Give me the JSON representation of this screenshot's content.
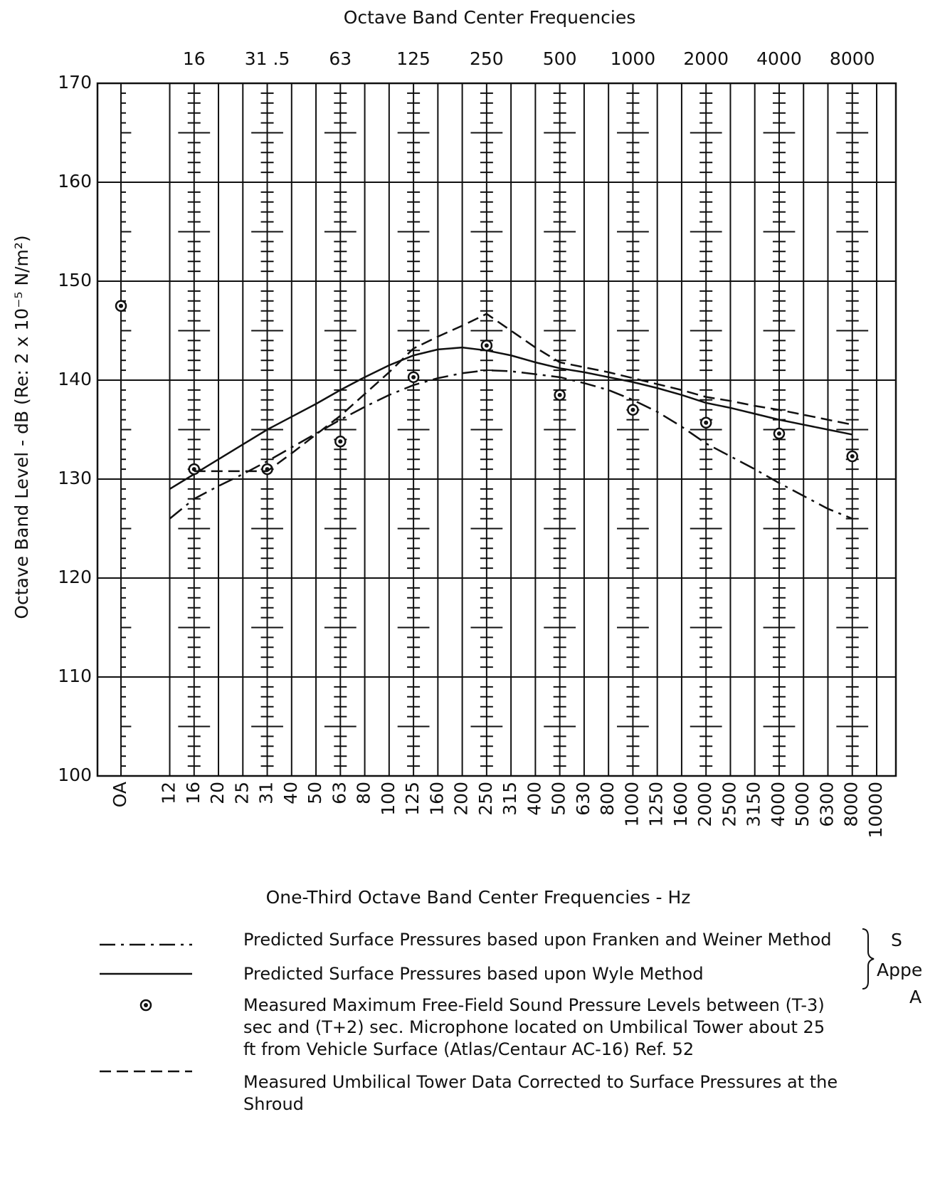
{
  "chart_data": {
    "type": "line",
    "title": "Octave Band Center Frequencies",
    "x_label": "One-Third Octave Band Center Frequencies - Hz",
    "y_label": "Octave Band Level - dB (Re: 2 x 10⁻⁵ N/m²)",
    "categories": [
      "OA",
      null,
      "12",
      "16",
      "20",
      "25",
      "31",
      "40",
      "50",
      "63",
      "80",
      "100",
      "125",
      "160",
      "200",
      "250",
      "315",
      "400",
      "500",
      "630",
      "800",
      "1000",
      "1250",
      "1600",
      "2000",
      "2500",
      "3150",
      "4000",
      "5000",
      "6300",
      "8000",
      "10000"
    ],
    "top_categories": [
      null,
      null,
      null,
      "16",
      null,
      null,
      "31 .5",
      null,
      null,
      "63",
      null,
      null,
      "125",
      null,
      null,
      "250",
      null,
      null,
      "500",
      null,
      null,
      "1000",
      null,
      null,
      "2000",
      null,
      null,
      "4000",
      null,
      null,
      "8000",
      null
    ],
    "ylim": [
      100,
      170
    ],
    "yticks": [
      100,
      110,
      120,
      130,
      140,
      150,
      160,
      170
    ],
    "grid": true,
    "color": "#111111",
    "series": [
      {
        "name": "Predicted Surface Pressures based upon Franken and Weiner Method",
        "style": "dash-dot",
        "values": [
          null,
          null,
          126,
          128,
          129.3,
          130.5,
          131.8,
          133.2,
          134.6,
          136,
          137.3,
          138.5,
          139.5,
          140.2,
          140.7,
          141,
          140.9,
          140.6,
          140.3,
          139.7,
          139,
          138,
          136.8,
          135.3,
          133.6,
          132.3,
          131,
          129.6,
          128.3,
          127,
          126,
          null
        ]
      },
      {
        "name": "Predicted Surface Pressures based upon Wyle Method",
        "style": "solid",
        "values": [
          null,
          null,
          129,
          130.5,
          132,
          133.5,
          135,
          136.3,
          137.6,
          139,
          140.3,
          141.5,
          142.5,
          143.1,
          143.3,
          143,
          142.5,
          141.8,
          141.2,
          140.8,
          140.3,
          139.8,
          139.2,
          138.5,
          137.7,
          137.2,
          136.6,
          136,
          135.5,
          135,
          134.5,
          null
        ]
      },
      {
        "name": "Measured Maximum Free-Field Sound Pressure Levels between (T-3) sec and (T+2) sec. Microphone located on Umbilical Tower about 25 ft from Vehicle Surface (Atlas/Centaur AC-16) Ref. 52",
        "style": "marker",
        "values": [
          147.5,
          null,
          null,
          131,
          null,
          null,
          131,
          null,
          null,
          133.8,
          null,
          null,
          140.3,
          null,
          null,
          143.5,
          null,
          null,
          138.5,
          null,
          null,
          137,
          null,
          null,
          135.7,
          null,
          null,
          134.6,
          null,
          null,
          132.3,
          null
        ]
      },
      {
        "name": "Measured Umbilical Tower Data Corrected to Surface Pressures at the Shroud",
        "style": "dashed",
        "values": [
          null,
          null,
          null,
          130.8,
          130.8,
          130.8,
          130.8,
          132.6,
          134.5,
          136.4,
          138.6,
          140.8,
          143.2,
          144.4,
          145.5,
          146.7,
          145,
          143.3,
          141.8,
          141.3,
          140.8,
          140.2,
          139.6,
          139,
          138.3,
          137.9,
          137.4,
          137,
          136.5,
          136,
          135.5,
          null
        ]
      }
    ],
    "note": [
      "S",
      "Appe",
      "A"
    ]
  }
}
